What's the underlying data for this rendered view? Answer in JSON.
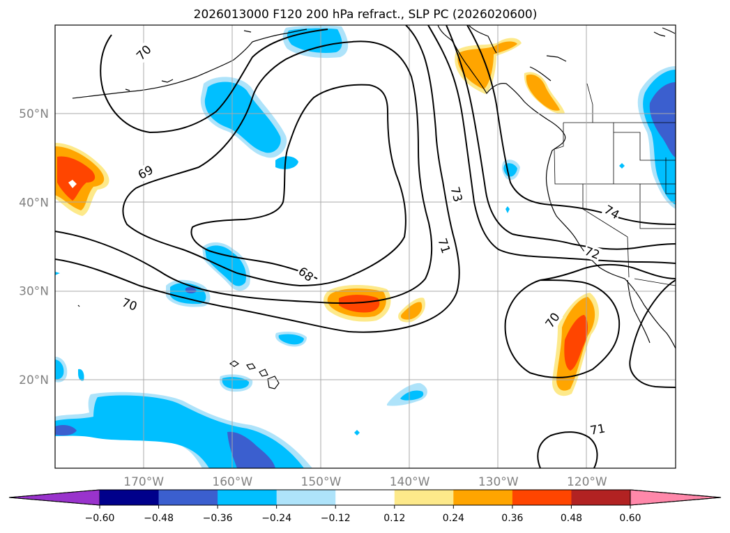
{
  "title": "2026013000 F120 200 hPa refract., SLP PC (2026020600)",
  "map": {
    "lon_range": [
      -180,
      -110
    ],
    "lat_range": [
      10,
      60
    ],
    "lon_ticks": [
      {
        "value": -170,
        "label": "170°W"
      },
      {
        "value": -160,
        "label": "160°W"
      },
      {
        "value": -150,
        "label": "150°W"
      },
      {
        "value": -140,
        "label": "140°W"
      },
      {
        "value": -130,
        "label": "130°W"
      },
      {
        "value": -120,
        "label": "120°W"
      }
    ],
    "lat_ticks": [
      {
        "value": 20,
        "label": "20°N"
      },
      {
        "value": 30,
        "label": "30°N"
      },
      {
        "value": 40,
        "label": "40°N"
      },
      {
        "value": 50,
        "label": "50°N"
      }
    ],
    "contour_labels": [
      {
        "text": "70",
        "lon": -170.0,
        "lat": 56.9,
        "rot": -45
      },
      {
        "text": "69",
        "lon": -169.8,
        "lat": 43.4,
        "rot": -28
      },
      {
        "text": "68",
        "lon": -151.7,
        "lat": 31.9,
        "rot": 38
      },
      {
        "text": "70",
        "lon": -171.6,
        "lat": 28.5,
        "rot": 20
      },
      {
        "text": "73",
        "lon": -134.7,
        "lat": 40.9,
        "rot": 75
      },
      {
        "text": "71",
        "lon": -136.1,
        "lat": 35.1,
        "rot": 72
      },
      {
        "text": "74",
        "lon": -117.2,
        "lat": 38.9,
        "rot": 30
      },
      {
        "text": "72",
        "lon": -119.4,
        "lat": 34.3,
        "rot": 20
      },
      {
        "text": "70",
        "lon": -123.9,
        "lat": 26.7,
        "rot": -55
      },
      {
        "text": "71",
        "lon": -118.8,
        "lat": 14.4,
        "rot": -10
      }
    ]
  },
  "colorbar": {
    "levels": [
      -0.6,
      -0.48,
      -0.36,
      -0.24,
      -0.12,
      0.12,
      0.24,
      0.36,
      0.48,
      0.6
    ],
    "tick_labels": [
      "−0.60",
      "−0.48",
      "−0.36",
      "−0.24",
      "−0.12",
      "0.12",
      "0.24",
      "0.36",
      "0.48",
      "0.60"
    ],
    "colors": [
      "#9933cc",
      "#00008b",
      "#3b5fcf",
      "#00bfff",
      "#aee3fa",
      "#ffffff",
      "#fde98a",
      "#ffa500",
      "#ff4500",
      "#b22222",
      "#ff88aa"
    ]
  }
}
